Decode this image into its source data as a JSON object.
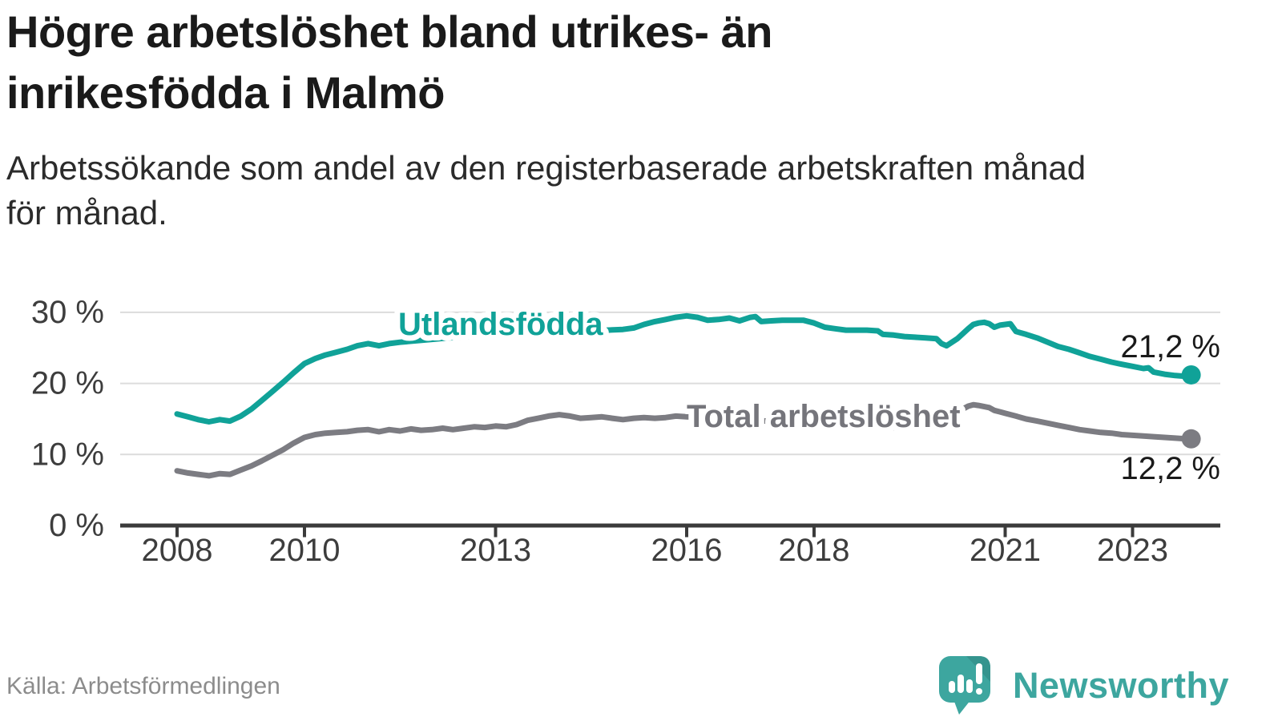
{
  "header": {
    "title_lines": [
      "Högre arbetslöshet bland utrikes- än",
      "inrikesfödda i Malmö"
    ],
    "subtitle_lines": [
      "Arbetssökande som andel av den registerbaserade arbetskraften månad",
      "för månad."
    ]
  },
  "footer": {
    "source": "Källa: Arbetsförmedlingen",
    "brand": "Newsworthy"
  },
  "colors": {
    "foreign_line": "#10a298",
    "total_line": "#7c7c82",
    "grid": "#dcdcdc",
    "axis": "#3b3b3b",
    "tick_label": "#3d3d3d",
    "value_label": "#1a1a1a",
    "total_label": "#75757b",
    "source_text": "#8c8c8c",
    "brand_teal": "#3da69f"
  },
  "chart_data": {
    "type": "line",
    "unit": "%",
    "x_label": "",
    "y_label": "",
    "ylim": [
      0,
      32
    ],
    "xlim": [
      2007.17,
      2024.35
    ],
    "grid": "horizontal",
    "y_ticks": [
      {
        "value": 0,
        "label": "0 %"
      },
      {
        "value": 10,
        "label": "10 %"
      },
      {
        "value": 20,
        "label": "20 %"
      },
      {
        "value": 30,
        "label": "30 %"
      }
    ],
    "x_ticks": [
      {
        "value": 2008,
        "label": "2008"
      },
      {
        "value": 2010,
        "label": "2010"
      },
      {
        "value": 2013,
        "label": "2013"
      },
      {
        "value": 2016,
        "label": "2016"
      },
      {
        "value": 2018,
        "label": "2018"
      },
      {
        "value": 2021,
        "label": "2021"
      },
      {
        "value": 2023,
        "label": "2023"
      }
    ],
    "series": [
      {
        "name": "Utlandsfödda",
        "color": "#10a298",
        "end_label": "21,2 %",
        "end_value": 21.2,
        "points": [
          [
            2008.0,
            15.7
          ],
          [
            2008.17,
            15.3
          ],
          [
            2008.33,
            14.9
          ],
          [
            2008.5,
            14.6
          ],
          [
            2008.67,
            14.9
          ],
          [
            2008.83,
            14.7
          ],
          [
            2009.0,
            15.4
          ],
          [
            2009.17,
            16.4
          ],
          [
            2009.33,
            17.6
          ],
          [
            2009.5,
            18.9
          ],
          [
            2009.67,
            20.2
          ],
          [
            2009.83,
            21.5
          ],
          [
            2010.0,
            22.8
          ],
          [
            2010.17,
            23.5
          ],
          [
            2010.33,
            24.0
          ],
          [
            2010.5,
            24.4
          ],
          [
            2010.67,
            24.8
          ],
          [
            2010.83,
            25.3
          ],
          [
            2011.0,
            25.6
          ],
          [
            2011.17,
            25.3
          ],
          [
            2011.33,
            25.6
          ],
          [
            2011.5,
            25.8
          ],
          [
            2011.75,
            26.0
          ],
          [
            2012.0,
            26.2
          ],
          [
            2012.25,
            26.4
          ],
          [
            2012.5,
            26.5
          ],
          [
            2012.75,
            26.7
          ],
          [
            2013.0,
            26.8
          ],
          [
            2013.25,
            27.0
          ],
          [
            2013.5,
            27.1
          ],
          [
            2013.75,
            27.2
          ],
          [
            2014.0,
            27.3
          ],
          [
            2014.25,
            27.2
          ],
          [
            2014.5,
            27.3
          ],
          [
            2014.75,
            27.5
          ],
          [
            2015.0,
            27.6
          ],
          [
            2015.17,
            27.8
          ],
          [
            2015.33,
            28.3
          ],
          [
            2015.5,
            28.7
          ],
          [
            2015.67,
            29.0
          ],
          [
            2015.83,
            29.3
          ],
          [
            2016.0,
            29.5
          ],
          [
            2016.17,
            29.3
          ],
          [
            2016.33,
            28.9
          ],
          [
            2016.5,
            29.0
          ],
          [
            2016.67,
            29.2
          ],
          [
            2016.83,
            28.8
          ],
          [
            2017.0,
            29.3
          ],
          [
            2017.08,
            29.4
          ],
          [
            2017.17,
            28.7
          ],
          [
            2017.33,
            28.8
          ],
          [
            2017.5,
            28.9
          ],
          [
            2017.67,
            28.9
          ],
          [
            2017.83,
            28.9
          ],
          [
            2018.0,
            28.5
          ],
          [
            2018.17,
            27.9
          ],
          [
            2018.33,
            27.7
          ],
          [
            2018.5,
            27.5
          ],
          [
            2018.67,
            27.5
          ],
          [
            2018.83,
            27.5
          ],
          [
            2019.0,
            27.4
          ],
          [
            2019.08,
            26.9
          ],
          [
            2019.25,
            26.8
          ],
          [
            2019.42,
            26.6
          ],
          [
            2019.58,
            26.5
          ],
          [
            2019.75,
            26.4
          ],
          [
            2019.92,
            26.3
          ],
          [
            2020.0,
            25.6
          ],
          [
            2020.08,
            25.3
          ],
          [
            2020.25,
            26.3
          ],
          [
            2020.42,
            27.7
          ],
          [
            2020.5,
            28.3
          ],
          [
            2020.58,
            28.5
          ],
          [
            2020.67,
            28.6
          ],
          [
            2020.75,
            28.4
          ],
          [
            2020.83,
            27.9
          ],
          [
            2020.92,
            28.2
          ],
          [
            2021.0,
            28.3
          ],
          [
            2021.08,
            28.4
          ],
          [
            2021.17,
            27.3
          ],
          [
            2021.33,
            26.9
          ],
          [
            2021.5,
            26.4
          ],
          [
            2021.67,
            25.8
          ],
          [
            2021.83,
            25.2
          ],
          [
            2022.0,
            24.8
          ],
          [
            2022.17,
            24.3
          ],
          [
            2022.33,
            23.8
          ],
          [
            2022.5,
            23.4
          ],
          [
            2022.67,
            23.0
          ],
          [
            2022.83,
            22.7
          ],
          [
            2023.0,
            22.4
          ],
          [
            2023.17,
            22.1
          ],
          [
            2023.25,
            22.2
          ],
          [
            2023.33,
            21.6
          ],
          [
            2023.5,
            21.3
          ],
          [
            2023.67,
            21.1
          ],
          [
            2023.83,
            21.0
          ],
          [
            2023.92,
            21.2
          ]
        ]
      },
      {
        "name": "Total arbetslöshet",
        "color": "#7c7c82",
        "end_label": "12,2 %",
        "end_value": 12.2,
        "points": [
          [
            2008.0,
            7.7
          ],
          [
            2008.17,
            7.4
          ],
          [
            2008.33,
            7.2
          ],
          [
            2008.5,
            7.0
          ],
          [
            2008.67,
            7.3
          ],
          [
            2008.83,
            7.2
          ],
          [
            2009.0,
            7.8
          ],
          [
            2009.17,
            8.4
          ],
          [
            2009.33,
            9.1
          ],
          [
            2009.5,
            9.9
          ],
          [
            2009.67,
            10.7
          ],
          [
            2009.83,
            11.6
          ],
          [
            2010.0,
            12.4
          ],
          [
            2010.17,
            12.8
          ],
          [
            2010.33,
            13.0
          ],
          [
            2010.5,
            13.1
          ],
          [
            2010.67,
            13.2
          ],
          [
            2010.83,
            13.4
          ],
          [
            2011.0,
            13.5
          ],
          [
            2011.17,
            13.2
          ],
          [
            2011.33,
            13.5
          ],
          [
            2011.5,
            13.3
          ],
          [
            2011.67,
            13.6
          ],
          [
            2011.83,
            13.4
          ],
          [
            2012.0,
            13.5
          ],
          [
            2012.17,
            13.7
          ],
          [
            2012.33,
            13.5
          ],
          [
            2012.5,
            13.7
          ],
          [
            2012.67,
            13.9
          ],
          [
            2012.83,
            13.8
          ],
          [
            2013.0,
            14.0
          ],
          [
            2013.17,
            13.9
          ],
          [
            2013.33,
            14.2
          ],
          [
            2013.5,
            14.8
          ],
          [
            2013.67,
            15.1
          ],
          [
            2013.83,
            15.4
          ],
          [
            2014.0,
            15.6
          ],
          [
            2014.17,
            15.4
          ],
          [
            2014.33,
            15.1
          ],
          [
            2014.5,
            15.2
          ],
          [
            2014.67,
            15.3
          ],
          [
            2014.83,
            15.1
          ],
          [
            2015.0,
            14.9
          ],
          [
            2015.17,
            15.1
          ],
          [
            2015.33,
            15.2
          ],
          [
            2015.5,
            15.1
          ],
          [
            2015.67,
            15.2
          ],
          [
            2015.83,
            15.4
          ],
          [
            2016.0,
            15.3
          ],
          [
            2016.25,
            15.2
          ],
          [
            2016.5,
            15.1
          ],
          [
            2016.75,
            15.0
          ],
          [
            2017.0,
            14.9
          ],
          [
            2017.25,
            14.7
          ],
          [
            2017.5,
            14.6
          ],
          [
            2017.75,
            14.5
          ],
          [
            2018.0,
            14.4
          ],
          [
            2018.25,
            14.2
          ],
          [
            2018.5,
            14.1
          ],
          [
            2018.75,
            14.0
          ],
          [
            2019.0,
            13.9
          ],
          [
            2019.25,
            13.8
          ],
          [
            2019.5,
            13.8
          ],
          [
            2019.75,
            13.9
          ],
          [
            2019.92,
            14.1
          ],
          [
            2020.08,
            14.9
          ],
          [
            2020.25,
            16.0
          ],
          [
            2020.42,
            16.8
          ],
          [
            2020.5,
            17.0
          ],
          [
            2020.58,
            16.9
          ],
          [
            2020.75,
            16.6
          ],
          [
            2020.83,
            16.2
          ],
          [
            2020.92,
            16.0
          ],
          [
            2021.0,
            15.8
          ],
          [
            2021.17,
            15.4
          ],
          [
            2021.33,
            15.0
          ],
          [
            2021.5,
            14.7
          ],
          [
            2021.67,
            14.4
          ],
          [
            2021.83,
            14.1
          ],
          [
            2022.0,
            13.8
          ],
          [
            2022.17,
            13.5
          ],
          [
            2022.33,
            13.3
          ],
          [
            2022.5,
            13.1
          ],
          [
            2022.67,
            13.0
          ],
          [
            2022.83,
            12.8
          ],
          [
            2023.0,
            12.7
          ],
          [
            2023.17,
            12.6
          ],
          [
            2023.33,
            12.5
          ],
          [
            2023.5,
            12.4
          ],
          [
            2023.67,
            12.3
          ],
          [
            2023.83,
            12.2
          ],
          [
            2023.92,
            12.2
          ]
        ]
      }
    ]
  }
}
